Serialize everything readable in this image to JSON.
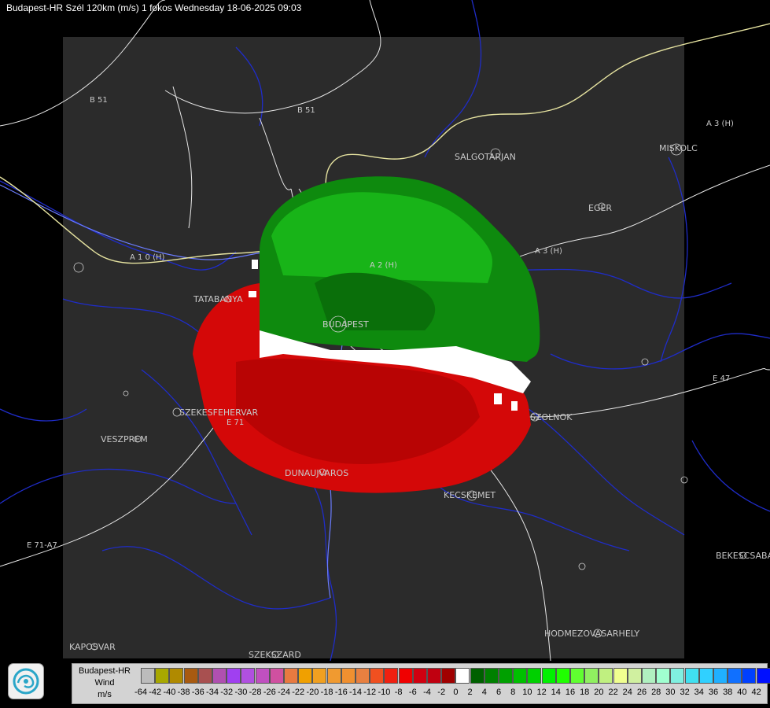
{
  "header": {
    "title": "Budapest-HR Szél 120km (m/s) 1 fokos Wednesday 18-06-2025 09:03"
  },
  "map": {
    "cities": [
      "SALGOTARJAN",
      "MISKOLC",
      "EGER",
      "TATABANYA",
      "BUDAPEST",
      "SZEKESFEHERVAR",
      "VESZPREM",
      "SZOLNOK",
      "DUNAUJVAROS",
      "KECSKEMET",
      "BEKESCSABA",
      "HODMEZOVASARHELY",
      "KAPOSVAR",
      "SZEKSZARD"
    ],
    "roads": [
      "B 51",
      "B 51",
      "A 1 0 (H)",
      "A 3 (H)",
      "A 3 (H)",
      "A 2 (H)",
      "E 71",
      "E 47",
      "E 71-A7"
    ],
    "colors": {
      "background": "#000000",
      "coverage": "#2b2b2b",
      "approaching": "#0d8a0d",
      "receding": "#d40808",
      "borders": "#1f2cc8",
      "roads": "#e8e8e8"
    }
  },
  "legend": {
    "title_lines": [
      "Budapest-HR",
      "Wind",
      "m/s"
    ],
    "ticks": [
      "-64",
      "-42",
      "-40",
      "-38",
      "-36",
      "-34",
      "-32",
      "-30",
      "-28",
      "-26",
      "-24",
      "-22",
      "-20",
      "-18",
      "-16",
      "-14",
      "-12",
      "-10",
      "-8",
      "-6",
      "-4",
      "-2",
      "0",
      "2",
      "4",
      "6",
      "8",
      "10",
      "12",
      "14",
      "16",
      "18",
      "20",
      "22",
      "24",
      "26",
      "28",
      "30",
      "32",
      "34",
      "36",
      "38",
      "40",
      "42"
    ],
    "colors": [
      "#bcbcbc",
      "#a8a800",
      "#b08a00",
      "#a85a10",
      "#a85050",
      "#b050b0",
      "#a040f0",
      "#b050e0",
      "#c050c0",
      "#d050a0",
      "#e87a40",
      "#f0a000",
      "#f0a020",
      "#f09a30",
      "#f09030",
      "#e88040",
      "#f05020",
      "#f02010",
      "#f00000",
      "#d00010",
      "#c00010",
      "#a00000",
      "#ffffff",
      "#006000",
      "#008000",
      "#00a000",
      "#00c000",
      "#00d000",
      "#00f000",
      "#20ff00",
      "#60ff30",
      "#90f060",
      "#c0f080",
      "#f0ff90",
      "#d0f0a0",
      "#b0f0c0",
      "#a0ffd0",
      "#80f0e0",
      "#40e0f0",
      "#30d0ff",
      "#20b0ff",
      "#1070ff",
      "#0040ff",
      "#0010ff"
    ]
  },
  "logo": {
    "icon": "omsz-swirl-icon"
  }
}
